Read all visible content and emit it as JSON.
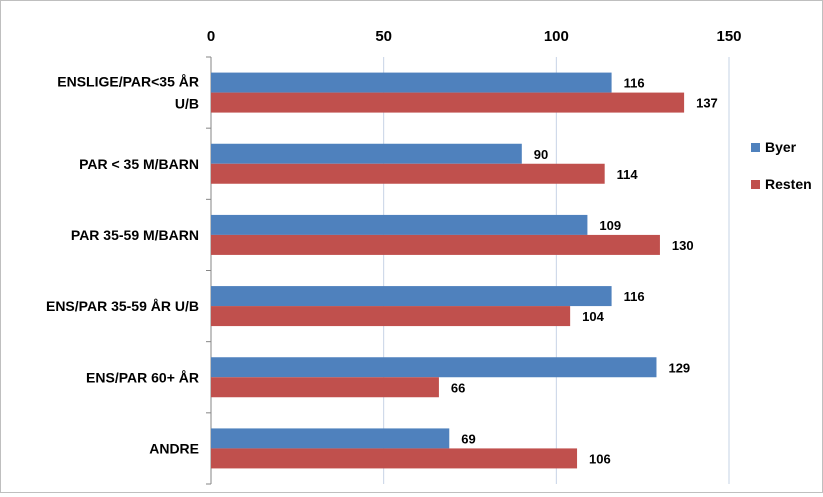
{
  "chart_data": {
    "type": "bar",
    "orientation": "horizontal",
    "categories": [
      "ENSLIGE/PAR<35 ÅR U/B",
      "PAR < 35 M/BARN",
      "PAR 35-59 M/BARN",
      "ENS/PAR 35-59 ÅR U/B",
      "ENS/PAR 60+ ÅR",
      "ANDRE"
    ],
    "category_lines": [
      [
        "ENSLIGE/PAR<35 ÅR",
        "U/B"
      ],
      [
        "PAR < 35 M/BARN"
      ],
      [
        "PAR 35-59 M/BARN"
      ],
      [
        "ENS/PAR 35-59 ÅR U/B"
      ],
      [
        "ENS/PAR 60+ ÅR"
      ],
      [
        "ANDRE"
      ]
    ],
    "series": [
      {
        "name": "Byer",
        "color": "#4f81bd",
        "values": [
          116,
          90,
          109,
          116,
          129,
          69
        ]
      },
      {
        "name": "Resten",
        "color": "#c0504d",
        "values": [
          137,
          114,
          130,
          104,
          66,
          106
        ]
      }
    ],
    "xlim": [
      0,
      150
    ],
    "xticks": [
      0,
      50,
      100,
      150
    ],
    "x_axis_position": "top",
    "grid": true,
    "legend_position": "right",
    "data_labels": true,
    "title": "",
    "xlabel": "",
    "ylabel": ""
  }
}
